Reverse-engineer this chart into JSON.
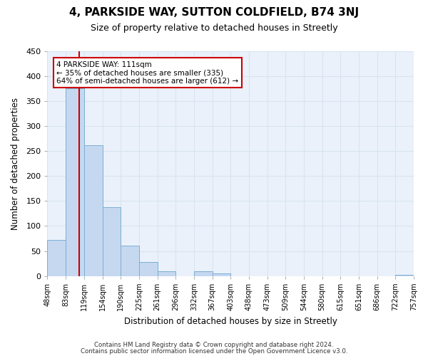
{
  "title": "4, PARKSIDE WAY, SUTTON COLDFIELD, B74 3NJ",
  "subtitle": "Size of property relative to detached houses in Streetly",
  "xlabel": "Distribution of detached houses by size in Streetly",
  "ylabel": "Number of detached properties",
  "bar_color": "#c5d8f0",
  "bar_edge_color": "#7bafd4",
  "redline_x": 1.72,
  "bar_values": [
    72,
    375,
    262,
    137,
    60,
    28,
    10,
    0,
    10,
    5,
    0,
    0,
    0,
    0,
    0,
    0,
    0,
    0,
    0,
    3
  ],
  "x_labels": [
    "48sqm",
    "83sqm",
    "119sqm",
    "154sqm",
    "190sqm",
    "225sqm",
    "261sqm",
    "296sqm",
    "332sqm",
    "367sqm",
    "403sqm",
    "438sqm",
    "473sqm",
    "509sqm",
    "544sqm",
    "580sqm",
    "615sqm",
    "651sqm",
    "686sqm",
    "722sqm",
    "757sqm"
  ],
  "ylim": [
    0,
    450
  ],
  "yticks": [
    0,
    50,
    100,
    150,
    200,
    250,
    300,
    350,
    400,
    450
  ],
  "annotation_line1": "4 PARKSIDE WAY: 111sqm",
  "annotation_line2": "← 35% of detached houses are smaller (335)",
  "annotation_line3": "64% of semi-detached houses are larger (612) →",
  "redline_color": "#cc0000",
  "footer1": "Contains HM Land Registry data © Crown copyright and database right 2024.",
  "footer2": "Contains public sector information licensed under the Open Government Licence v3.0.",
  "background_color": "#ffffff",
  "grid_color": "#d8e4f0"
}
